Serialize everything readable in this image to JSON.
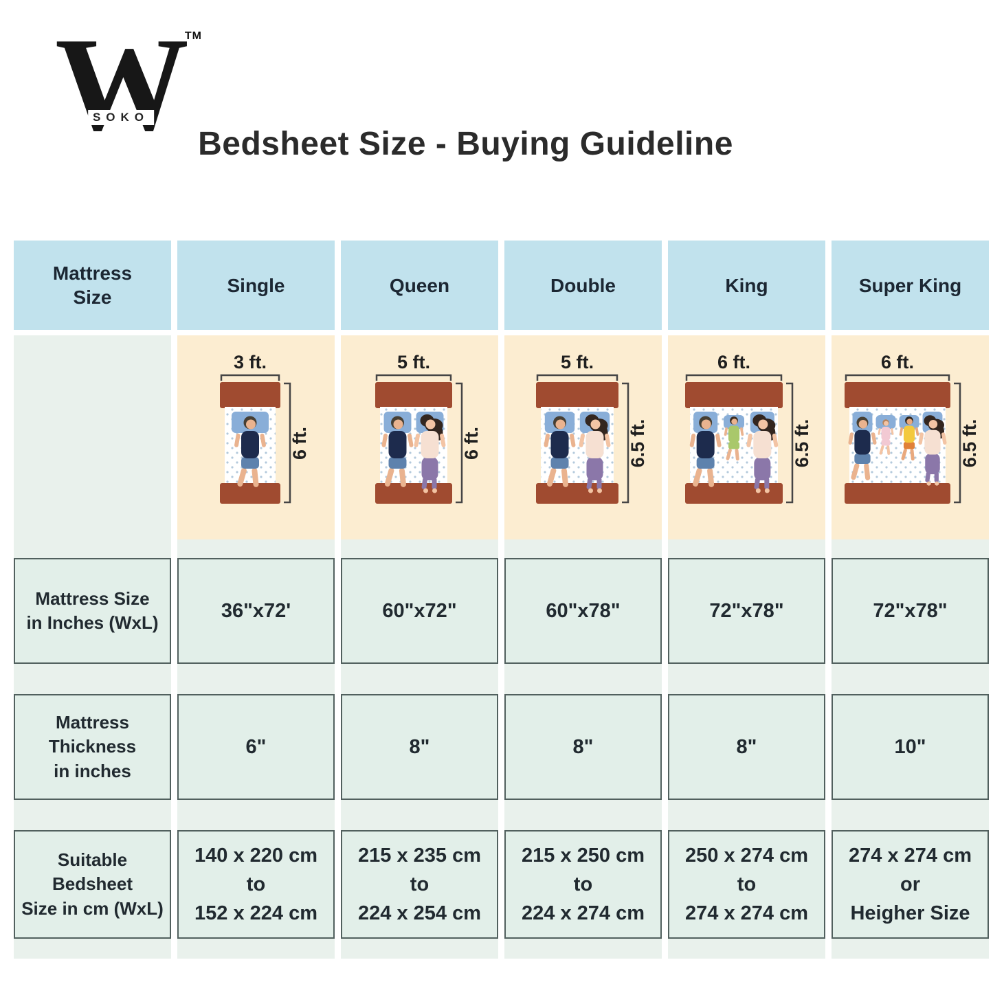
{
  "logo": {
    "letter": "W",
    "word": "SOKO",
    "tm": "TM"
  },
  "title": "Bedsheet Size - Buying Guideline",
  "colors": {
    "header_bg": "#c1e2ed",
    "illustration_bg": "#fcedd1",
    "strip_bg": "#e9f1ec",
    "cell_bg": "#e2efe9",
    "cell_border": "#51605e",
    "text": "#212a30",
    "bed_frame": "#a04b30",
    "mattress": "#ffffff",
    "mattress_dot": "#b3c9dc",
    "pillow": "#89aed8",
    "bracket": "#454545"
  },
  "columns": [
    {
      "header": [
        "Mattress",
        "Size"
      ],
      "rows": [
        [
          "Mattress Size",
          "in Inches (WxL)"
        ],
        [
          "Mattress",
          "Thickness",
          "in inches"
        ],
        [
          "Suitable",
          "Bedsheet",
          "Size in cm (WxL)"
        ]
      ]
    },
    {
      "header": "Single",
      "bed": {
        "width_label": "3 ft.",
        "length_label": "6 ft.",
        "bed_width": 88,
        "people": [
          "man"
        ]
      },
      "rows": [
        "36\"x72'",
        "6\"",
        [
          "140 x 220 cm",
          "to",
          "152 x 224 cm"
        ]
      ]
    },
    {
      "header": "Queen",
      "bed": {
        "width_label": "5 ft.",
        "length_label": "6 ft.",
        "bed_width": 112,
        "people": [
          "man",
          "woman"
        ]
      },
      "rows": [
        "60\"x72\"",
        "8\"",
        [
          "215 x 235 cm",
          "to",
          "224 x 254 cm"
        ]
      ]
    },
    {
      "header": "Double",
      "bed": {
        "width_label": "5 ft.",
        "length_label": "6.5 ft.",
        "bed_width": 120,
        "people": [
          "man",
          "woman"
        ]
      },
      "rows": [
        "60\"x78\"",
        "8\"",
        [
          "215 x 250 cm",
          "to",
          "224 x 274 cm"
        ]
      ]
    },
    {
      "header": "King",
      "bed": {
        "width_label": "6 ft.",
        "length_label": "6.5 ft.",
        "bed_width": 142,
        "people": [
          "man",
          "child-green",
          "woman"
        ]
      },
      "rows": [
        "72\"x78\"",
        "8\"",
        [
          "250 x 274 cm",
          "to",
          "274 x 274 cm"
        ]
      ]
    },
    {
      "header": "Super King",
      "bed": {
        "width_label": "6 ft.",
        "length_label": "6.5 ft.",
        "bed_width": 154,
        "people": [
          "man",
          "baby-pink",
          "child-yellow",
          "woman"
        ]
      },
      "rows": [
        "72\"x78\"",
        "10\"",
        [
          "274 x 274 cm",
          "or",
          "Heigher Size"
        ]
      ]
    }
  ],
  "people_palette": {
    "man": {
      "kind": "adult",
      "hair": "#473f33",
      "skin": "#eab38f",
      "shirt": "#1d2b4d",
      "bottom": "#5e82ad"
    },
    "woman": {
      "kind": "adult-f",
      "hair": "#33261f",
      "skin": "#f3c4a4",
      "shirt": "#f6e0d2",
      "bottom": "#8b77a9"
    },
    "child-green": {
      "kind": "child",
      "hair": "#3c2d21",
      "skin": "#eab38f",
      "shirt": "#a9c86b",
      "bottom": "#a9c86b"
    },
    "child-yellow": {
      "kind": "child",
      "hair": "#2e251d",
      "skin": "#e9a97e",
      "shirt": "#f3c93e",
      "bottom": "#e08038"
    },
    "baby-pink": {
      "kind": "baby",
      "hair": "#b5835d",
      "skin": "#f3c4a4",
      "shirt": "#f2c9d3",
      "bottom": "#f2c9d3"
    }
  }
}
